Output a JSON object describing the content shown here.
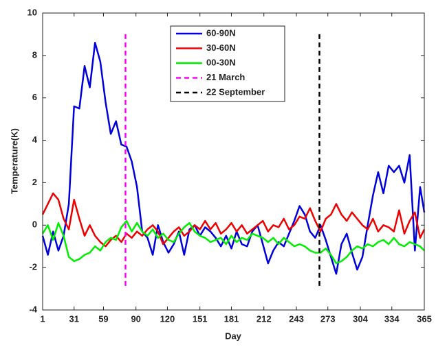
{
  "chart_data": {
    "type": "line",
    "xlabel": "Day",
    "ylabel": "Temperature(K)",
    "x": [
      1,
      6,
      11,
      16,
      21,
      26,
      31,
      36,
      41,
      46,
      51,
      56,
      61,
      66,
      71,
      76,
      81,
      86,
      91,
      96,
      101,
      106,
      111,
      116,
      121,
      126,
      131,
      136,
      141,
      146,
      151,
      156,
      161,
      166,
      171,
      176,
      181,
      186,
      191,
      196,
      201,
      206,
      211,
      216,
      221,
      226,
      231,
      236,
      241,
      246,
      251,
      256,
      261,
      266,
      271,
      276,
      281,
      286,
      291,
      296,
      301,
      306,
      311,
      316,
      321,
      326,
      331,
      336,
      341,
      346,
      351,
      356,
      361,
      365
    ],
    "series": [
      {
        "name": "60-90N",
        "color": "#0000dd",
        "values": [
          -0.5,
          -1.4,
          -0.3,
          -1.2,
          -0.5,
          1.0,
          5.6,
          5.5,
          7.5,
          6.5,
          8.6,
          7.7,
          5.8,
          4.3,
          4.9,
          3.8,
          3.7,
          3.0,
          1.8,
          -0.3,
          -0.6,
          -1.4,
          0,
          -0.8,
          -1.3,
          -0.9,
          -0.3,
          -1.4,
          -0.2,
          0,
          -0.5,
          -0.1,
          -0.3,
          -0.6,
          -1.0,
          -0.5,
          -1.1,
          -0.3,
          -0.9,
          -1.0,
          -0.3,
          0,
          -0.9,
          -1.8,
          -1.2,
          -0.8,
          -1.0,
          -0.4,
          0.2,
          0.9,
          0.5,
          -0.3,
          -0.6,
          0,
          -0.7,
          -1.5,
          -2.3,
          -0.9,
          -0.4,
          -1.3,
          -2.1,
          -1.5,
          0,
          1.4,
          2.5,
          1.5,
          2.8,
          2.5,
          2.8,
          2.0,
          3.3,
          -1.2,
          1.8,
          0.6
        ]
      },
      {
        "name": "30-60N",
        "color": "#ee0000",
        "values": [
          0.5,
          1.0,
          1.5,
          1.2,
          0.3,
          -0.2,
          1.2,
          0.3,
          -0.5,
          0.0,
          -0.5,
          -0.8,
          -1.0,
          -0.7,
          -0.5,
          -0.8,
          -0.4,
          -0.6,
          -0.3,
          -0.5,
          -0.2,
          0.0,
          -0.3,
          -0.9,
          -0.6,
          -0.3,
          -0.1,
          -0.5,
          -0.3,
          0.0,
          -0.2,
          0.2,
          -0.2,
          0.1,
          -0.4,
          -0.2,
          0.1,
          -0.3,
          0.0,
          -0.4,
          -0.2,
          0.0,
          0.2,
          -0.3,
          0.0,
          -0.1,
          0.3,
          -0.2,
          0.0,
          0.4,
          0.3,
          0.8,
          0.2,
          -0.3,
          0.3,
          0.5,
          1.0,
          0.5,
          0.2,
          0.6,
          0.3,
          0.0,
          -0.2,
          0.3,
          -0.3,
          0.0,
          -0.1,
          -0.3,
          0.7,
          -0.4,
          0.2,
          0.6,
          -0.6,
          -0.2
        ]
      },
      {
        "name": "00-30N",
        "color": "#00ee00",
        "values": [
          -0.4,
          0.0,
          -0.7,
          0.1,
          -0.5,
          -1.5,
          -1.7,
          -1.6,
          -1.4,
          -1.3,
          -1.0,
          -1.2,
          -0.8,
          -0.6,
          -0.7,
          -0.1,
          0.2,
          -0.3,
          0.1,
          -0.3,
          -0.5,
          -0.2,
          -0.6,
          -0.4,
          -0.7,
          -0.8,
          -0.4,
          -0.1,
          0.1,
          -0.3,
          -0.5,
          -0.6,
          -0.8,
          -0.7,
          -0.6,
          -0.9,
          -0.5,
          -0.8,
          -0.6,
          -0.7,
          -0.4,
          -0.5,
          -0.6,
          -0.8,
          -0.6,
          -0.9,
          -0.6,
          -0.8,
          -1.0,
          -0.9,
          -1.0,
          -1.2,
          -1.3,
          -1.3,
          -1.1,
          -1.4,
          -1.8,
          -1.7,
          -1.5,
          -1.2,
          -1.0,
          -1.1,
          -0.9,
          -1.0,
          -0.8,
          -0.7,
          -0.9,
          -0.6,
          -0.9,
          -1.0,
          -0.8,
          -0.9,
          -1.0,
          -1.2
        ]
      },
      {
        "name": "21 March",
        "color": "#ff00ff",
        "dashed": true,
        "x": [
          80,
          80
        ],
        "values": [
          9,
          -3
        ]
      },
      {
        "name": "22 September",
        "color": "#000000",
        "dashed": true,
        "x": [
          265,
          265
        ],
        "values": [
          9,
          -3
        ]
      }
    ],
    "xlim": [
      1,
      365
    ],
    "xticks": [
      1,
      31,
      59,
      90,
      120,
      151,
      181,
      212,
      243,
      273,
      304,
      334,
      365
    ],
    "ylim": [
      -4,
      10
    ],
    "yticks": [
      -4,
      -2,
      0,
      2,
      4,
      6,
      8,
      10
    ]
  }
}
